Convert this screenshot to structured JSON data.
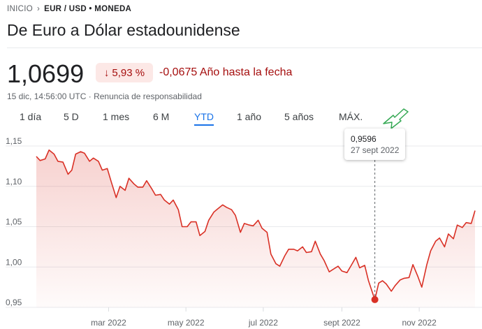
{
  "breadcrumb": {
    "home": "INICIO",
    "current": "EUR / USD • MONEDA"
  },
  "title": "De Euro a Dólar estadounidense",
  "price": "1,0699",
  "badge": {
    "arrow": "↓",
    "percent": "5,93 %"
  },
  "change_text": "-0,0675 Año hasta la fecha",
  "meta": {
    "timestamp": "15 dic, 14:56:00 UTC",
    "separator": "·",
    "disclaimer": "Renuncia de responsabilidad"
  },
  "tabs": [
    "1 día",
    "5 D",
    "1 mes",
    "6 M",
    "YTD",
    "1 año",
    "5 años",
    "MÁX."
  ],
  "active_tab": "YTD",
  "tooltip": {
    "value": "0,9596",
    "date": "27 sept 2022"
  },
  "colors": {
    "line": "#d93025",
    "negative": "#a50e0e",
    "badge_bg": "#fce8e6",
    "accent": "#1a73e8",
    "annotation_arrow": "#34a853"
  },
  "chart_data": {
    "type": "area",
    "title": "",
    "xlabel": "",
    "ylabel": "",
    "ylim": [
      0.95,
      1.15
    ],
    "y_ticks": [
      0.95,
      1.0,
      1.05,
      1.1,
      1.15
    ],
    "y_tick_labels": [
      "0,95",
      "1,00",
      "1,05",
      "1,10",
      "1,15"
    ],
    "x_ticks": [
      {
        "date": "2022-03-01",
        "label": "mar 2022"
      },
      {
        "date": "2022-05-01",
        "label": "may 2022"
      },
      {
        "date": "2022-07-01",
        "label": "jul 2022"
      },
      {
        "date": "2022-09-01",
        "label": "sept 2022"
      },
      {
        "date": "2022-11-01",
        "label": "nov 2022"
      }
    ],
    "x_range": [
      "2022-01-03",
      "2022-12-15"
    ],
    "grid": true,
    "highlight": {
      "date": "2022-09-27",
      "value": 0.9596
    },
    "series": [
      {
        "values": [
          [
            "2022-01-03",
            1.137
          ],
          [
            "2022-01-06",
            1.132
          ],
          [
            "2022-01-10",
            1.134
          ],
          [
            "2022-01-13",
            1.145
          ],
          [
            "2022-01-17",
            1.14
          ],
          [
            "2022-01-20",
            1.131
          ],
          [
            "2022-01-24",
            1.13
          ],
          [
            "2022-01-28",
            1.115
          ],
          [
            "2022-01-31",
            1.12
          ],
          [
            "2022-02-03",
            1.14
          ],
          [
            "2022-02-07",
            1.143
          ],
          [
            "2022-02-10",
            1.141
          ],
          [
            "2022-02-14",
            1.131
          ],
          [
            "2022-02-17",
            1.135
          ],
          [
            "2022-02-21",
            1.131
          ],
          [
            "2022-02-24",
            1.12
          ],
          [
            "2022-02-28",
            1.122
          ],
          [
            "2022-03-03",
            1.106
          ],
          [
            "2022-03-07",
            1.086
          ],
          [
            "2022-03-10",
            1.1
          ],
          [
            "2022-03-14",
            1.095
          ],
          [
            "2022-03-17",
            1.11
          ],
          [
            "2022-03-21",
            1.103
          ],
          [
            "2022-03-24",
            1.099
          ],
          [
            "2022-03-28",
            1.099
          ],
          [
            "2022-03-31",
            1.107
          ],
          [
            "2022-04-04",
            1.097
          ],
          [
            "2022-04-07",
            1.089
          ],
          [
            "2022-04-11",
            1.09
          ],
          [
            "2022-04-14",
            1.083
          ],
          [
            "2022-04-18",
            1.078
          ],
          [
            "2022-04-21",
            1.083
          ],
          [
            "2022-04-25",
            1.071
          ],
          [
            "2022-04-28",
            1.05
          ],
          [
            "2022-05-02",
            1.05
          ],
          [
            "2022-05-05",
            1.056
          ],
          [
            "2022-05-09",
            1.056
          ],
          [
            "2022-05-12",
            1.039
          ],
          [
            "2022-05-16",
            1.044
          ],
          [
            "2022-05-19",
            1.058
          ],
          [
            "2022-05-23",
            1.068
          ],
          [
            "2022-05-26",
            1.072
          ],
          [
            "2022-05-30",
            1.077
          ],
          [
            "2022-06-02",
            1.074
          ],
          [
            "2022-06-06",
            1.071
          ],
          [
            "2022-06-09",
            1.064
          ],
          [
            "2022-06-13",
            1.043
          ],
          [
            "2022-06-16",
            1.054
          ],
          [
            "2022-06-20",
            1.052
          ],
          [
            "2022-06-23",
            1.051
          ],
          [
            "2022-06-27",
            1.058
          ],
          [
            "2022-06-30",
            1.048
          ],
          [
            "2022-07-04",
            1.043
          ],
          [
            "2022-07-07",
            1.016
          ],
          [
            "2022-07-11",
            1.004
          ],
          [
            "2022-07-14",
            1.001
          ],
          [
            "2022-07-18",
            1.014
          ],
          [
            "2022-07-21",
            1.022
          ],
          [
            "2022-07-25",
            1.022
          ],
          [
            "2022-07-28",
            1.02
          ],
          [
            "2022-08-01",
            1.025
          ],
          [
            "2022-08-04",
            1.018
          ],
          [
            "2022-08-08",
            1.019
          ],
          [
            "2022-08-11",
            1.032
          ],
          [
            "2022-08-15",
            1.016
          ],
          [
            "2022-08-18",
            1.008
          ],
          [
            "2022-08-22",
            0.994
          ],
          [
            "2022-08-25",
            0.997
          ],
          [
            "2022-08-29",
            1.001
          ],
          [
            "2022-09-01",
            0.995
          ],
          [
            "2022-09-05",
            0.993
          ],
          [
            "2022-09-08",
            1.001
          ],
          [
            "2022-09-12",
            1.012
          ],
          [
            "2022-09-15",
            0.999
          ],
          [
            "2022-09-19",
            1.002
          ],
          [
            "2022-09-22",
            0.983
          ],
          [
            "2022-09-26",
            0.964
          ],
          [
            "2022-09-27",
            0.9596
          ],
          [
            "2022-09-30",
            0.98
          ],
          [
            "2022-10-03",
            0.983
          ],
          [
            "2022-10-06",
            0.979
          ],
          [
            "2022-10-10",
            0.97
          ],
          [
            "2022-10-13",
            0.977
          ],
          [
            "2022-10-17",
            0.984
          ],
          [
            "2022-10-20",
            0.986
          ],
          [
            "2022-10-24",
            0.987
          ],
          [
            "2022-10-27",
            1.003
          ],
          [
            "2022-10-31",
            0.988
          ],
          [
            "2022-11-03",
            0.975
          ],
          [
            "2022-11-07",
            1.003
          ],
          [
            "2022-11-10",
            1.02
          ],
          [
            "2022-11-14",
            1.032
          ],
          [
            "2022-11-17",
            1.036
          ],
          [
            "2022-11-21",
            1.025
          ],
          [
            "2022-11-24",
            1.041
          ],
          [
            "2022-11-28",
            1.035
          ],
          [
            "2022-12-01",
            1.052
          ],
          [
            "2022-12-05",
            1.049
          ],
          [
            "2022-12-08",
            1.055
          ],
          [
            "2022-12-12",
            1.054
          ],
          [
            "2022-12-15",
            1.0699
          ]
        ]
      }
    ]
  }
}
